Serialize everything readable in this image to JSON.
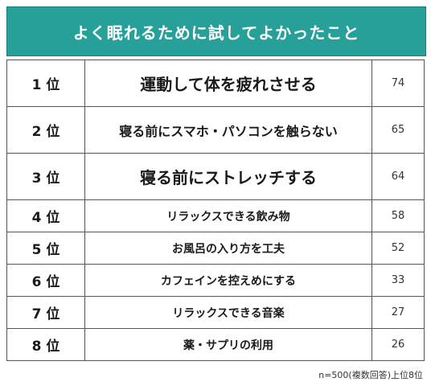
{
  "title": "よく眠れるために試してよかったこと",
  "rows": [
    {
      "rank": "1 位",
      "item": "運動して体を疲れさせる",
      "value": "74"
    },
    {
      "rank": "2 位",
      "item": "寝る前にスマホ・パソコンを触らない",
      "value": "65"
    },
    {
      "rank": "3 位",
      "item": "寝る前にストレッチする",
      "value": "64"
    },
    {
      "rank": "4 位",
      "item": "リラックスできる飲み物",
      "value": "58"
    },
    {
      "rank": "5 位",
      "item": "お風呂の入り方を工夫",
      "value": "52"
    },
    {
      "rank": "6 位",
      "item": "カフェインを控えめにする",
      "value": "33"
    },
    {
      "rank": "7 位",
      "item": "リラックスできる音楽",
      "value": "27"
    },
    {
      "rank": "8 位",
      "item": "薬・サプリの利用",
      "value": "26"
    }
  ],
  "footnote": "n=500(複数回答)上位8位",
  "colors": {
    "header_bg": "#27a09a",
    "header_text": "#ffffff",
    "border": "#555555"
  }
}
